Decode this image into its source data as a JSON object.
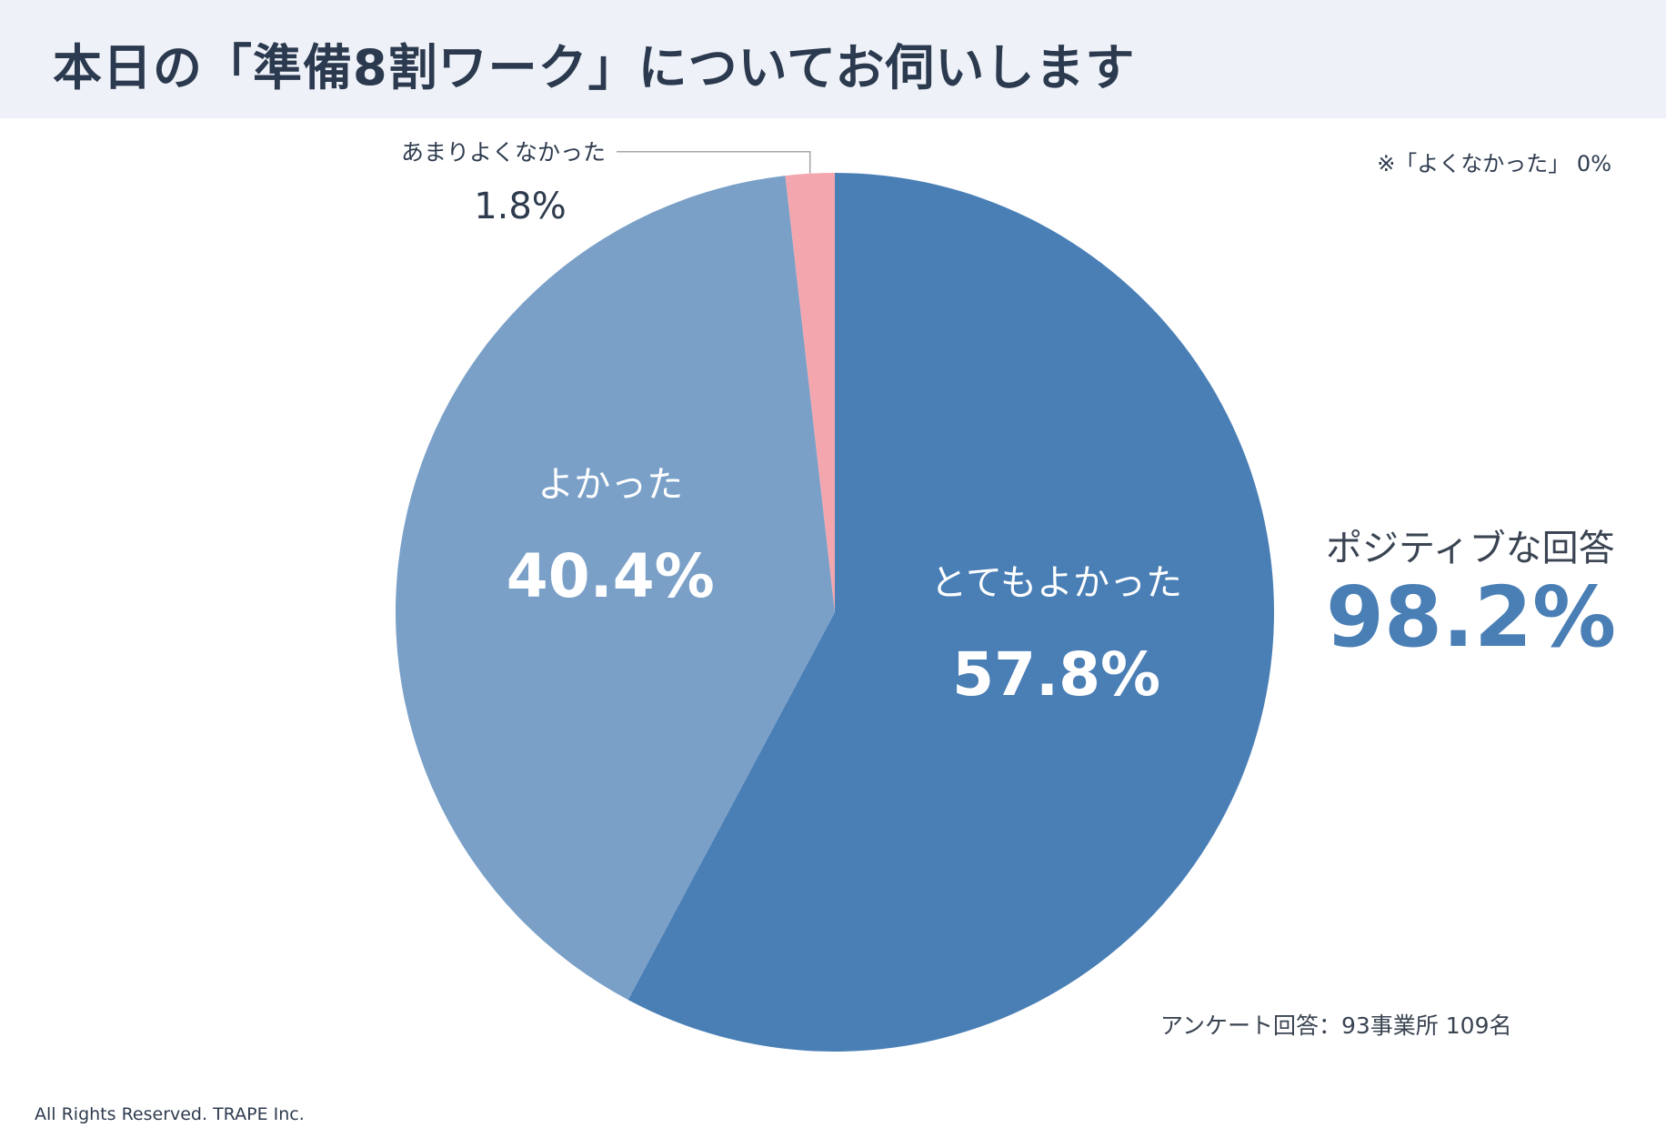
{
  "header": {
    "title": "本日の「準備8割ワーク」についてお伺いします"
  },
  "note": "※「よくなかった」 0%",
  "summary": {
    "label": "ポジティブな回答",
    "value": "98.2%"
  },
  "survey_note": "アンケート回答：93事業所 109名",
  "footer": "All Rights Reserved. TRAPE Inc.",
  "colors": {
    "very_good": "#4a7fb6",
    "good": "#7aa0c8",
    "not_so_good": "#f4a6ae",
    "accent": "#4a7fb6"
  },
  "chart_data": {
    "type": "pie",
    "categories": [
      "とてもよかった",
      "よかった",
      "あまりよくなかった"
    ],
    "values": [
      57.8,
      40.4,
      1.8
    ],
    "value_labels": [
      "57.8%",
      "40.4%",
      "1.8%"
    ]
  }
}
